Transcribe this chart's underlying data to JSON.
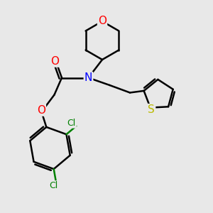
{
  "bg_color": "#e8e8e8",
  "bond_color": "#000000",
  "bond_width": 1.8,
  "atom_colors": {
    "O": "#ff0000",
    "N": "#0000ff",
    "S": "#bbbb00",
    "Cl": "#008000",
    "C": "#000000"
  },
  "font_size": 10
}
